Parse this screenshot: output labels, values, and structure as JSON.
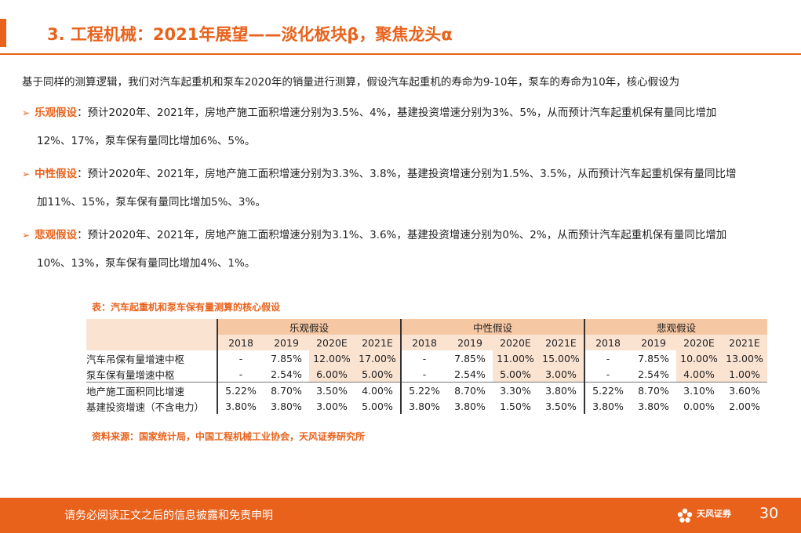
{
  "header": {
    "title": "3. 工程机械：2021年展望——淡化板块β，聚焦龙头α"
  },
  "intro": "基于同样的测算逻辑，我们对汽车起重机和泵车2020年的销量进行测算，假设汽车起重机的寿命为9-10年，泵车的寿命为10年，核心假设为",
  "cases": [
    {
      "bullet": "➢",
      "name": "乐观假设",
      "line1": "：预计2020年、2021年，房地产施工面积增速分别为3.5%、4%，基建投资增速分别为3%、5%，从而预计汽车起重机保有量同比增加",
      "line2": "12%、17%，泵车保有量同比增加6%、5%。"
    },
    {
      "bullet": "➢",
      "name": "中性假设",
      "line1": "：预计2020年、2021年，房地产施工面积增速分别为3.3%、3.8%，基建投资增速分别为1.5%、3.5%，从而预计汽车起重机保有量同比增",
      "line2": "加11%、15%，泵车保有量同比增加5%、3%。"
    },
    {
      "bullet": "➢",
      "name": "悲观假设",
      "line1": "：预计2020年、2021年，房地产施工面积增速分别为3.1%、3.6%，基建投资增速分别为0%、2%，从而预计汽车起重机保有量同比增加",
      "line2": "10%、13%，泵车保有量同比增加4%、1%。"
    }
  ],
  "table": {
    "caption": "表：汽车起重机和泵车保有量测算的核心假设",
    "groups": [
      "乐观假设",
      "中性假设",
      "悲观假设"
    ],
    "years": [
      "2018",
      "2019",
      "2020E",
      "2021E"
    ],
    "rows": [
      {
        "label": "汽车吊保有量增速中枢",
        "values": [
          "-",
          "7.85%",
          "12.00%",
          "17.00%",
          "-",
          "7.85%",
          "11.00%",
          "15.00%",
          "-",
          "7.85%",
          "10.00%",
          "13.00%"
        ]
      },
      {
        "label": "泵车保有量增速中枢",
        "values": [
          "-",
          "2.54%",
          "6.00%",
          "5.00%",
          "-",
          "2.54%",
          "5.00%",
          "3.00%",
          "-",
          "2.54%",
          "4.00%",
          "1.00%"
        ]
      },
      {
        "label": "地产施工面积同比增速",
        "values": [
          "5.22%",
          "8.70%",
          "3.50%",
          "4.00%",
          "5.22%",
          "8.70%",
          "3.30%",
          "3.80%",
          "5.22%",
          "8.70%",
          "3.10%",
          "3.60%"
        ]
      },
      {
        "label": "基建投资增速（不含电力）",
        "values": [
          "3.80%",
          "3.80%",
          "3.00%",
          "5.00%",
          "3.80%",
          "3.80%",
          "1.50%",
          "3.50%",
          "3.80%",
          "3.80%",
          "0.00%",
          "2.00%"
        ]
      }
    ],
    "source": "资料来源：国家统计局，中国工程机械工业协会，天风证券研究所"
  },
  "footer": {
    "disclaimer": "请务必阅读正文之后的信息披露和免责申明",
    "brand": "天风证券",
    "brand_icon": "flower-logo-icon",
    "page_number": "30"
  },
  "colors": {
    "accent": "#e8621c",
    "header_fill": "#f6c7a3",
    "highlight_fill": "#fbe3d2"
  }
}
